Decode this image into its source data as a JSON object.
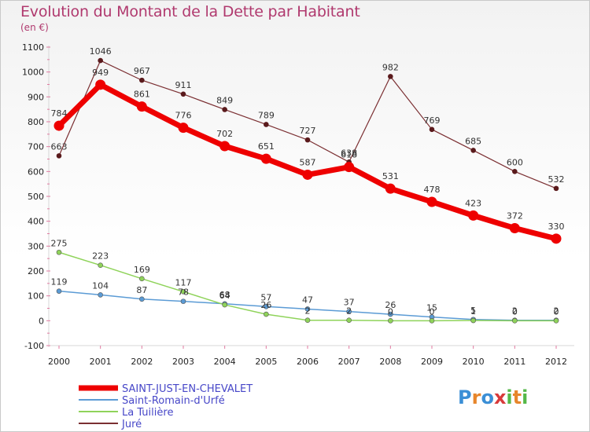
{
  "header": {
    "title": "Evolution du Montant de la Dette par Habitant",
    "subtitle": "(en €)"
  },
  "logo": {
    "text": "Proxiti"
  },
  "chart_data": {
    "type": "line",
    "x": [
      "2000",
      "2001",
      "2002",
      "2003",
      "2004",
      "2005",
      "2006",
      "2007",
      "2008",
      "2009",
      "2010",
      "2011",
      "2012"
    ],
    "ylim": [
      -100,
      1100
    ],
    "yticks": [
      -100,
      0,
      100,
      200,
      300,
      400,
      500,
      600,
      700,
      800,
      900,
      1000,
      1100
    ],
    "grid": false,
    "legend_position": "bottom-left",
    "series": [
      {
        "name": "SAINT-JUST-EN-CHEVALET",
        "color": "#ee0000",
        "width": 7,
        "values": [
          784,
          949,
          861,
          776,
          702,
          651,
          587,
          618,
          531,
          478,
          423,
          372,
          330
        ]
      },
      {
        "name": "Saint-Romain-d'Urfé",
        "color": "#5b9bd5",
        "width": 1.5,
        "values": [
          119,
          104,
          87,
          78,
          68,
          57,
          47,
          37,
          26,
          15,
          5,
          2,
          2
        ]
      },
      {
        "name": "La Tuilière",
        "color": "#8fd35a",
        "width": 1.5,
        "values": [
          275,
          223,
          169,
          117,
          64,
          26,
          2,
          2,
          0,
          0,
          1,
          0,
          0
        ]
      },
      {
        "name": "Juré",
        "color": "#7b2f32",
        "width": 1.2,
        "values": [
          663,
          1046,
          967,
          911,
          849,
          789,
          727,
          638,
          982,
          769,
          685,
          600,
          532
        ]
      }
    ]
  }
}
